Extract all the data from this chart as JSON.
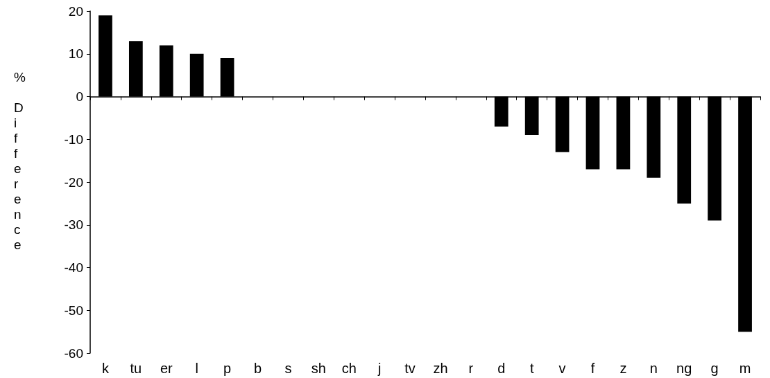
{
  "chart_data": {
    "type": "bar",
    "ylabel": "% Difference",
    "categories": [
      "k",
      "tu",
      "er",
      "l",
      "p",
      "b",
      "s",
      "sh",
      "ch",
      "j",
      "tv",
      "zh",
      "r",
      "d",
      "t",
      "v",
      "f",
      "z",
      "n",
      "ng",
      "g",
      "m"
    ],
    "values": [
      19,
      13,
      12,
      10,
      9,
      0,
      0,
      0,
      0,
      0,
      0,
      0,
      0,
      -7,
      -9,
      -13,
      -17,
      -17,
      -19,
      -25,
      -29,
      -55
    ],
    "color": "#000000",
    "ylim": [
      -60,
      20
    ],
    "yticks": [
      -60,
      -50,
      -40,
      -30,
      -20,
      -10,
      0,
      10,
      20
    ]
  }
}
